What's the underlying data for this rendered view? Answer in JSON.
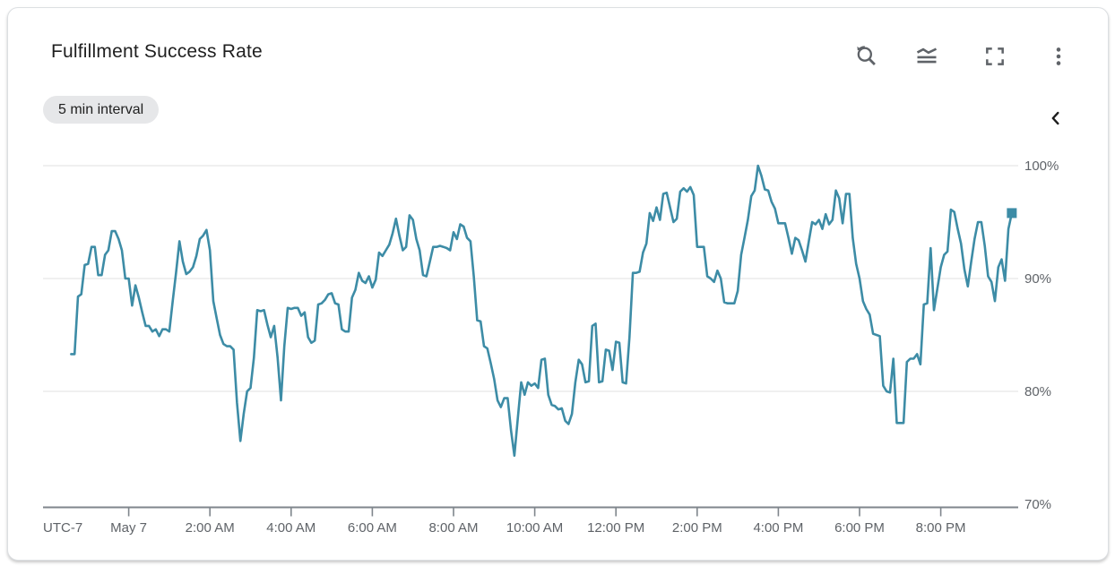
{
  "header": {
    "title": "Fulfillment Success Rate",
    "interval_chip": "5 min interval",
    "toolbar": [
      {
        "name": "zoom-reset-button",
        "icon": "zoom-reset-icon"
      },
      {
        "name": "chart-options-button",
        "icon": "line-chart-options-icon"
      },
      {
        "name": "fullscreen-button",
        "icon": "fullscreen-icon"
      },
      {
        "name": "more-options-button",
        "icon": "more-vert-icon"
      }
    ],
    "legend_toggle": {
      "name": "expand-legend-button",
      "icon": "chevron-left-icon"
    }
  },
  "colors": {
    "series": "#3d8ca6",
    "gridline": "#ececec",
    "axis": "#7f868c",
    "axis_text": "#5f6368",
    "title_text": "#1f1f1f",
    "icon": "#5f6368",
    "chip_bg": "#e6e7e9"
  },
  "chart_data": {
    "type": "line",
    "title": "Fulfillment Success Rate",
    "unit": "%",
    "interval_label": "5 min interval",
    "timezone_label": "UTC-7",
    "grid": "horizontal-only",
    "legend_position": "collapsed-right",
    "ylim": [
      70,
      100.5
    ],
    "yticks": [
      {
        "label": "100%",
        "value": 100
      },
      {
        "label": "90%",
        "value": 90
      },
      {
        "label": "80%",
        "value": 80
      },
      {
        "label": "70%",
        "value": 70
      }
    ],
    "xticks": [
      {
        "label": "May 7",
        "hour": 0
      },
      {
        "label": "2:00 AM",
        "hour": 2
      },
      {
        "label": "4:00 AM",
        "hour": 4
      },
      {
        "label": "6:00 AM",
        "hour": 6
      },
      {
        "label": "8:00 AM",
        "hour": 8
      },
      {
        "label": "10:00 AM",
        "hour": 10
      },
      {
        "label": "12:00 PM",
        "hour": 12
      },
      {
        "label": "2:00 PM",
        "hour": 14
      },
      {
        "label": "4:00 PM",
        "hour": 16
      },
      {
        "label": "6:00 PM",
        "hour": 18
      },
      {
        "label": "8:00 PM",
        "hour": 20
      }
    ],
    "start": "May 6, 10:35 PM",
    "start_hour_offset": -1.4167,
    "interval_minutes": 5,
    "end_marker": "square",
    "series": [
      {
        "name": "fulfillment-success-rate",
        "color": "#3d8ca6",
        "values": [
          83.3,
          83.3,
          88.4,
          88.6,
          91.2,
          91.3,
          92.8,
          92.8,
          90.3,
          90.3,
          92.1,
          92.5,
          94.2,
          94.2,
          93.5,
          92.5,
          90.0,
          90.0,
          87.6,
          89.4,
          88.3,
          87.0,
          85.8,
          85.8,
          85.3,
          85.5,
          84.9,
          85.5,
          85.5,
          85.3,
          88.0,
          90.5,
          93.3,
          91.5,
          90.4,
          90.6,
          91.0,
          92.0,
          93.5,
          93.8,
          94.3,
          92.5,
          88.0,
          86.5,
          85.0,
          84.2,
          84.0,
          84.0,
          83.7,
          79.0,
          75.6,
          78.0,
          80.0,
          80.3,
          83.0,
          87.2,
          87.1,
          87.2,
          85.9,
          84.8,
          85.8,
          83.0,
          79.2,
          84.0,
          87.4,
          87.3,
          87.4,
          87.4,
          86.7,
          87.0,
          84.8,
          84.3,
          84.5,
          87.7,
          87.8,
          88.1,
          88.6,
          88.7,
          87.8,
          87.7,
          85.5,
          85.3,
          85.3,
          88.3,
          89.0,
          90.5,
          89.8,
          89.6,
          90.2,
          89.2,
          89.9,
          92.3,
          92.0,
          92.5,
          93.0,
          94.0,
          95.3,
          93.8,
          92.5,
          92.8,
          95.6,
          95.2,
          93.5,
          92.5,
          90.3,
          90.2,
          91.5,
          92.8,
          92.8,
          92.9,
          92.8,
          92.7,
          92.5,
          94.1,
          93.5,
          94.8,
          94.6,
          93.6,
          93.3,
          90.2,
          86.3,
          86.2,
          84.0,
          83.8,
          82.5,
          81.1,
          79.2,
          78.6,
          79.4,
          79.4,
          76.5,
          74.3,
          77.6,
          80.8,
          79.7,
          80.8,
          80.5,
          80.7,
          80.3,
          82.8,
          82.9,
          79.7,
          78.8,
          78.7,
          78.4,
          78.5,
          77.4,
          77.1,
          78.0,
          80.8,
          82.8,
          82.4,
          80.8,
          80.9,
          85.8,
          86.0,
          80.8,
          80.9,
          83.7,
          83.6,
          81.9,
          84.4,
          84.3,
          80.8,
          80.7,
          84.8,
          90.5,
          90.5,
          90.6,
          92.3,
          93.1,
          95.8,
          95.1,
          96.3,
          95.2,
          97.5,
          97.6,
          96.3,
          95.0,
          95.3,
          97.7,
          98.0,
          97.7,
          98.1,
          97.4,
          92.8,
          92.8,
          92.8,
          90.2,
          90.0,
          89.7,
          90.7,
          90.0,
          87.9,
          87.8,
          87.8,
          87.8,
          88.9,
          92.1,
          93.6,
          95.2,
          97.3,
          97.8,
          100.0,
          99.1,
          97.9,
          97.8,
          96.8,
          96.2,
          94.9,
          94.9,
          94.9,
          93.6,
          92.2,
          93.6,
          93.4,
          92.5,
          91.5,
          93.3,
          95.0,
          94.8,
          95.2,
          94.4,
          95.7,
          94.8,
          95.2,
          97.8,
          97.1,
          94.9,
          97.5,
          97.5,
          93.6,
          91.3,
          90.0,
          88.0,
          87.3,
          86.8,
          85.1,
          85.0,
          84.9,
          80.5,
          80.0,
          79.9,
          82.9,
          77.2,
          77.2,
          77.2,
          82.6,
          82.9,
          82.9,
          83.3,
          82.4,
          87.7,
          87.8,
          92.7,
          87.2,
          89.1,
          91.0,
          92.1,
          92.4,
          96.1,
          95.9,
          94.4,
          93.1,
          90.8,
          89.3,
          91.5,
          93.5,
          95.0,
          95.0,
          92.9,
          90.2,
          89.7,
          88.0,
          91.0,
          91.7,
          89.8,
          94.4,
          95.8
        ]
      }
    ]
  }
}
